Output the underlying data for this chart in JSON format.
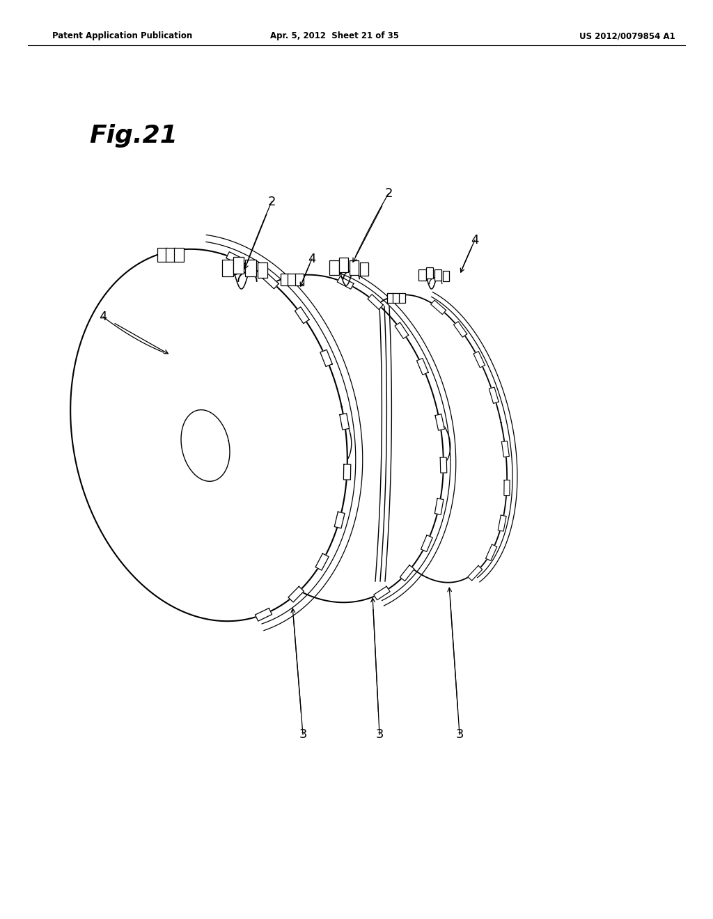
{
  "header_left": "Patent Application Publication",
  "header_mid": "Apr. 5, 2012  Sheet 21 of 35",
  "header_right": "US 2012/0079854 A1",
  "fig_label": "Fig.21",
  "background_color": "#ffffff"
}
